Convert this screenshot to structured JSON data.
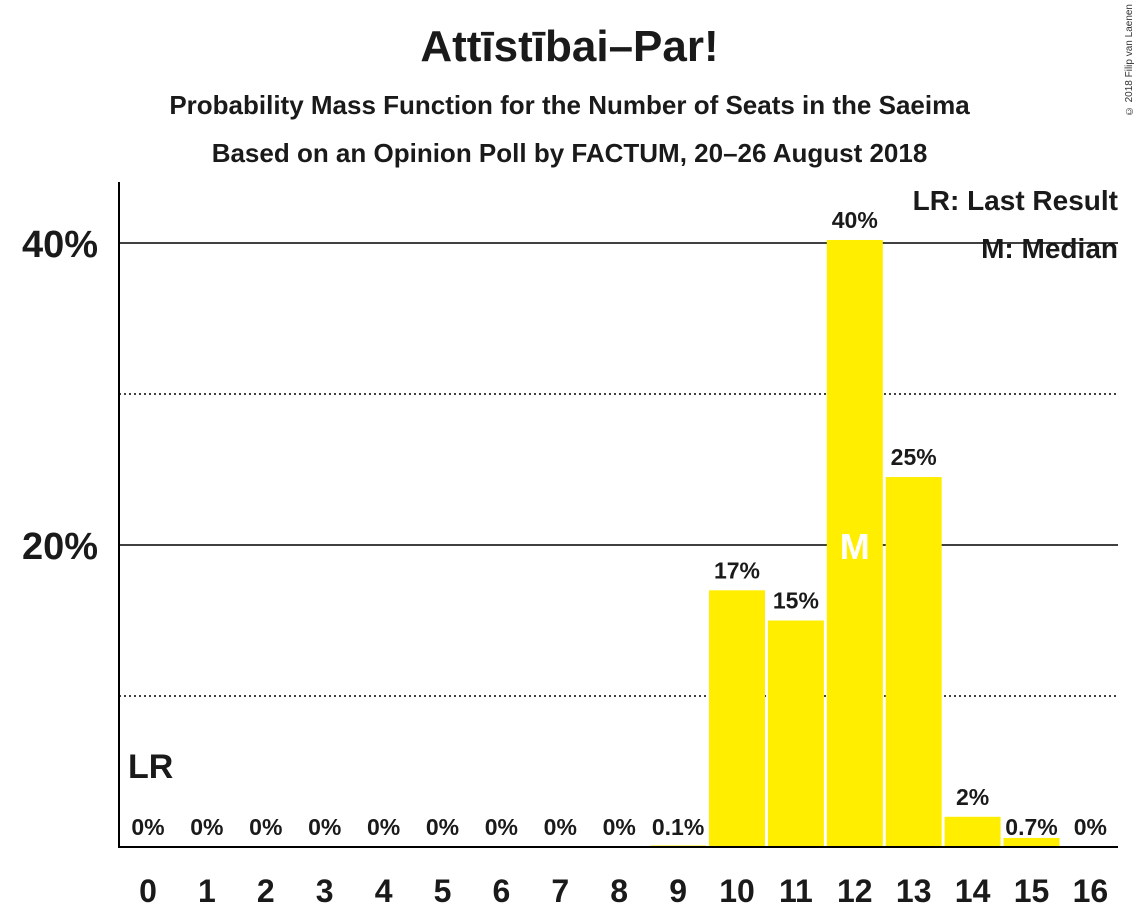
{
  "chart_data": {
    "type": "bar",
    "title": "Attīstībai–Par!",
    "subtitle": "Probability Mass Function for the Number of Seats in the Saeima",
    "subtitle2": "Based on an Opinion Poll by FACTUM, 20–26 August 2018",
    "copyright": "© 2018 Filip van Laenen",
    "categories": [
      "0",
      "1",
      "2",
      "3",
      "4",
      "5",
      "6",
      "7",
      "8",
      "9",
      "10",
      "11",
      "12",
      "13",
      "14",
      "15",
      "16"
    ],
    "values": [
      0,
      0,
      0,
      0,
      0,
      0,
      0,
      0,
      0,
      0.1,
      17,
      15,
      40,
      25,
      2,
      0.7,
      0
    ],
    "value_labels": [
      "0%",
      "0%",
      "0%",
      "0%",
      "0%",
      "0%",
      "0%",
      "0%",
      "0%",
      "0.1%",
      "17%",
      "15%",
      "40%",
      "25%",
      "2%",
      "0.7%",
      "0%"
    ],
    "plot_values": [
      0,
      0,
      0,
      0,
      0,
      0,
      0,
      0,
      0,
      0.1,
      17.0,
      15.0,
      40.2,
      24.5,
      2.0,
      0.6,
      0
    ],
    "y_ticks": [
      20,
      40
    ],
    "y_tick_labels": [
      "20%",
      "40%"
    ],
    "minor_gridlines": [
      10,
      30
    ],
    "ylim": [
      0,
      44
    ],
    "median_index": 12,
    "median_label": "M",
    "last_result_index": 0,
    "last_result_label": "LR",
    "legend": [
      "LR: Last Result",
      "M: Median"
    ],
    "legend_position": "top-right",
    "bar_color": "#ffee00"
  }
}
